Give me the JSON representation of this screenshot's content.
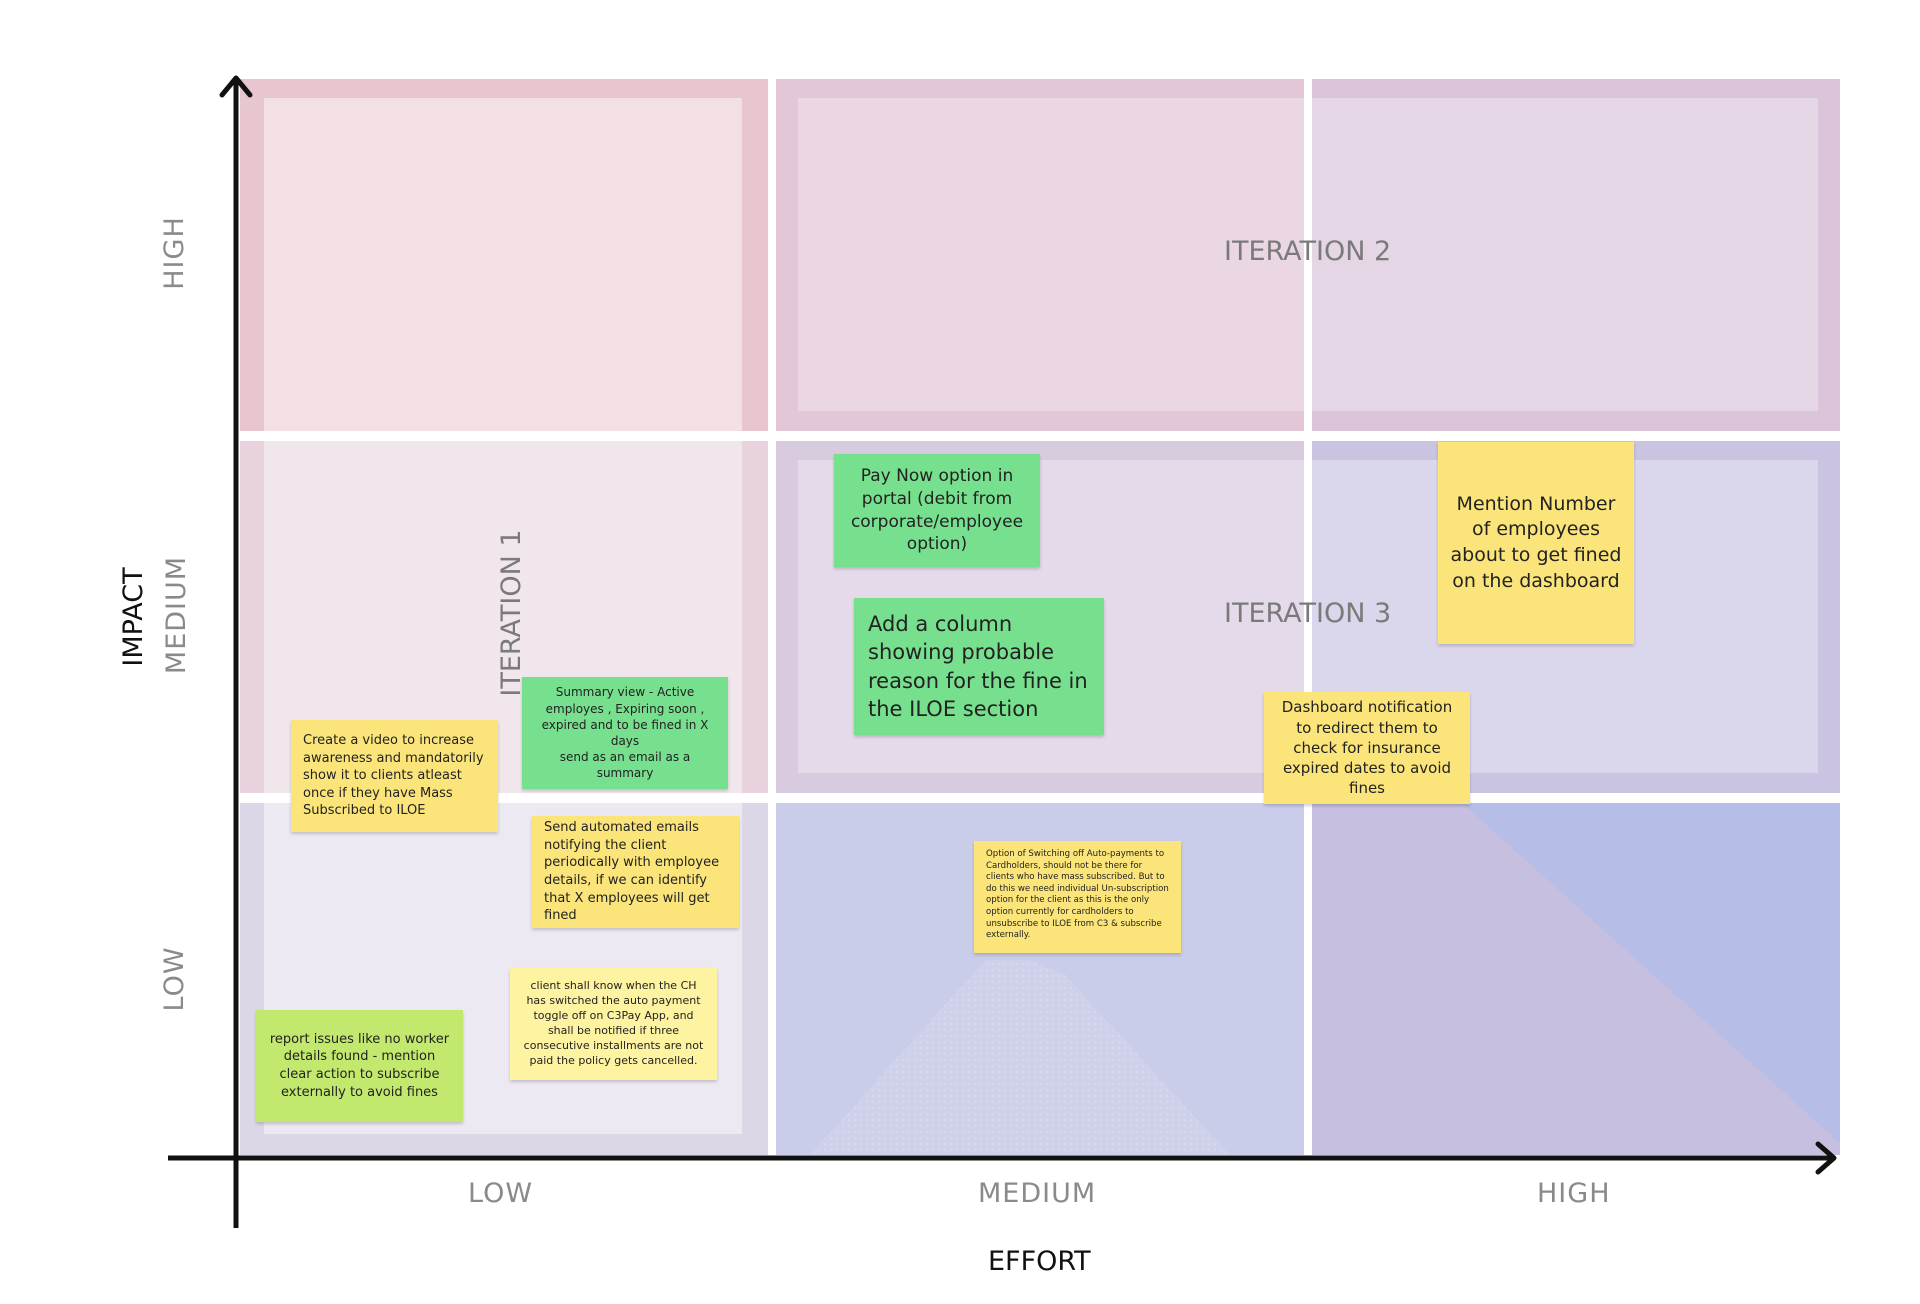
{
  "axes": {
    "x_title": "EFFORT",
    "y_title": "IMPACT",
    "x_ticks": [
      "LOW",
      "MEDIUM",
      "HIGH"
    ],
    "y_ticks": [
      "HIGH",
      "MEDIUM",
      "LOW"
    ]
  },
  "iterations": {
    "one": "ITERATION 1",
    "two": "ITERATION 2",
    "three": "ITERATION 3"
  },
  "notes": {
    "pay_now": "Pay Now option in portal (debit from corporate/employee option)",
    "add_column": "Add a column showing probable reason for the fine in the ILOE section",
    "mention_number": "Mention Number of employees about to get fined on the dashboard",
    "dashboard_notification": "Dashboard notification to redirect them to check for insurance expired dates to avoid fines",
    "summary_view": "Summary view - Active employes  , Expiring soon , expired and to be fined in X days\nsend as an email  as a summary",
    "create_video": "Create a video to increase awareness and mandatorily show it to clients atleast once if they have Mass Subscribed to ILOE",
    "automated_emails": "Send automated emails notifying the client periodically with employee details, if we can identify that X employees will get fined",
    "switching_off": "Option of Switching off Auto-payments to Cardholders, should not be there for clients who have mass subscribed. But to do this we need individual Un-subscription option for the client as this is the only option currently for cardholders to unsubscribe to ILOE from C3 & subscribe externally.",
    "client_know": "client shall know when the CH has switched the auto payment toggle off on C3Pay App, and shall be notified if three consecutive installments are not paid the policy gets cancelled.",
    "report_issues": "report issues like no worker details found - mention clear action to subscribe externally to avoid fines"
  },
  "colors": {
    "note_yellow": "#fbe57a",
    "note_pale_yellow": "#fdf3a0",
    "note_green": "#77e08e",
    "note_lime": "#c2e86e"
  }
}
